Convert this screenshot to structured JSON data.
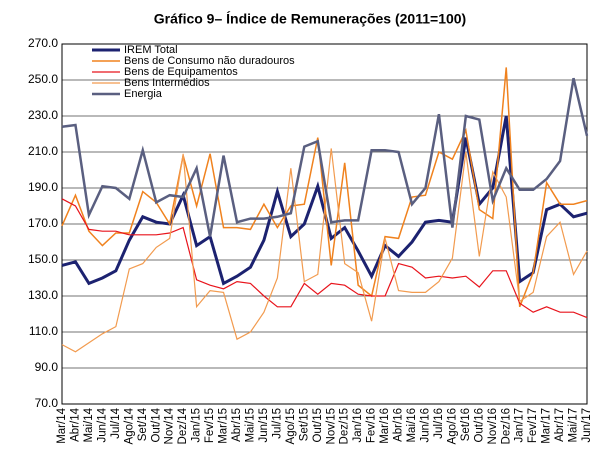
{
  "chart_data": {
    "type": "line",
    "title": "Gráfico 9– Índice de Remunerações (2011=100)",
    "categories": [
      "Mar/14",
      "Abr/14",
      "Mai/14",
      "Jun/14",
      "Jul/14",
      "Ago/14",
      "Set/14",
      "Out/14",
      "Nov/14",
      "Dez/14",
      "Jan/15",
      "Fev/15",
      "Mar/15",
      "Abr/15",
      "Mai/15",
      "Jun/15",
      "Jul/15",
      "Ago/15",
      "Set/15",
      "Out/15",
      "Nov/15",
      "Dez/15",
      "Jan/16",
      "Fev/16",
      "Mar/16",
      "Abr/16",
      "Mai/16",
      "Jun/16",
      "Jul/16",
      "Ago/16",
      "Set/16",
      "Out/16",
      "Nov/16",
      "Dez/16",
      "Jan/17",
      "Fev/17",
      "Mar/17",
      "Abr/17",
      "Mai/17",
      "Jun/17"
    ],
    "series": [
      {
        "name": "IREM Total",
        "color": "#1c2270",
        "width": 3,
        "values": [
          147,
          149,
          137,
          140,
          144,
          161,
          174,
          171,
          170,
          186,
          158,
          163,
          137,
          141,
          146,
          161,
          188,
          163,
          170,
          191,
          162,
          168,
          155,
          141,
          158,
          152,
          160,
          171,
          172,
          171,
          218,
          181,
          190,
          230,
          138,
          143,
          178,
          181,
          174,
          176
        ]
      },
      {
        "name": "Bens de Consumo não duradouros",
        "color": "#f0821e",
        "width": 1.5,
        "values": [
          169,
          186,
          166,
          158,
          165,
          165,
          188,
          182,
          170,
          208,
          180,
          209,
          168,
          168,
          167,
          181,
          168,
          180,
          181,
          218,
          147,
          204,
          136,
          130,
          163,
          162,
          185,
          186,
          210,
          206,
          222,
          178,
          173,
          257,
          124,
          143,
          193,
          181,
          181,
          183
        ]
      },
      {
        "name": "Bens de Equipamentos",
        "color": "#e8141c",
        "width": 1.2,
        "values": [
          184,
          180,
          167,
          166,
          166,
          164,
          164,
          164,
          165,
          168,
          139,
          136,
          134,
          138,
          137,
          130,
          124,
          124,
          137,
          131,
          137,
          136,
          131,
          130,
          130,
          148,
          146,
          140,
          141,
          140,
          141,
          135,
          144,
          144,
          126,
          121,
          124,
          121,
          121,
          118
        ]
      },
      {
        "name": "Bens Intermédios",
        "color": "#f29b4f",
        "width": 1.2,
        "values": [
          103,
          99,
          104,
          109,
          113,
          145,
          148,
          157,
          162,
          209,
          124,
          133,
          132,
          106,
          110,
          121,
          140,
          201,
          138,
          142,
          212,
          148,
          143,
          116,
          162,
          133,
          132,
          132,
          138,
          151,
          210,
          152,
          199,
          185,
          127,
          132,
          163,
          171,
          142,
          155
        ]
      },
      {
        "name": "Energia",
        "color": "#5a5f80",
        "width": 2.5,
        "values": [
          224,
          225,
          175,
          191,
          190,
          184,
          211,
          182,
          186,
          185,
          201,
          163,
          208,
          171,
          173,
          173,
          174,
          176,
          213,
          216,
          171,
          172,
          172,
          211,
          211,
          210,
          181,
          190,
          231,
          168,
          230,
          228,
          183,
          201,
          189,
          189,
          195,
          205,
          251,
          219
        ]
      }
    ],
    "ylim": [
      70,
      270
    ],
    "yticks": [
      {
        "value": 70,
        "label": "70.0"
      },
      {
        "value": 90,
        "label": "90.0"
      },
      {
        "value": 110,
        "label": "110.0"
      },
      {
        "value": 130,
        "label": "130.0"
      },
      {
        "value": 150,
        "label": "150.0"
      },
      {
        "value": 170,
        "label": "170.0"
      },
      {
        "value": 190,
        "label": "190.0"
      },
      {
        "value": 210,
        "label": "210.0"
      },
      {
        "value": 230,
        "label": "230.0"
      },
      {
        "value": 250,
        "label": "250.0"
      },
      {
        "value": 270,
        "label": "270.0"
      }
    ],
    "grid": true,
    "legend": "upper-left"
  }
}
